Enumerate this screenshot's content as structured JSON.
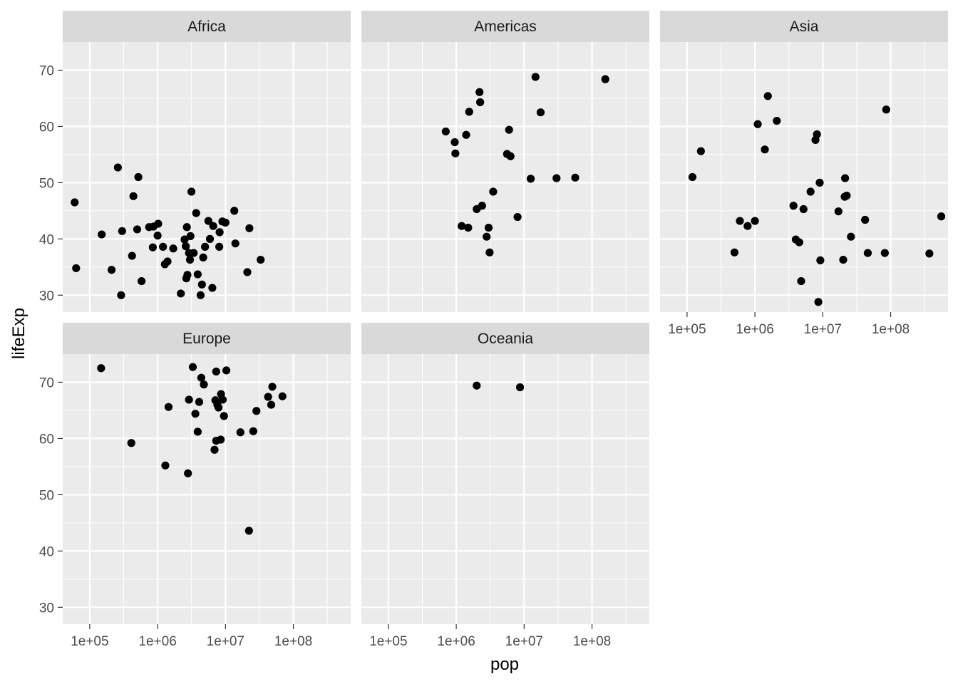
{
  "chart_data": {
    "type": "scatter",
    "xlabel": "pop",
    "ylabel": "lifeExp",
    "x_scale": "log10",
    "xlim": [
      40000,
      700000000
    ],
    "ylim": [
      27,
      75
    ],
    "x_ticks": [
      {
        "value": 100000,
        "label": "1e+05"
      },
      {
        "value": 1000000,
        "label": "1e+06"
      },
      {
        "value": 10000000,
        "label": "1e+07"
      },
      {
        "value": 100000000,
        "label": "1e+08"
      }
    ],
    "y_ticks": [
      {
        "value": 30,
        "label": "30"
      },
      {
        "value": 40,
        "label": "40"
      },
      {
        "value": 50,
        "label": "50"
      },
      {
        "value": 60,
        "label": "60"
      },
      {
        "value": 70,
        "label": "70"
      }
    ],
    "grid": true,
    "colors": {
      "point": "#000000",
      "panel": "#ebebeb",
      "strip": "#d9d9d9",
      "grid": "#ffffff"
    },
    "facets": [
      {
        "name": "Africa",
        "points": [
          {
            "x": 60000,
            "y": 46.5
          },
          {
            "x": 63000,
            "y": 34.8
          },
          {
            "x": 150000,
            "y": 40.8
          },
          {
            "x": 210000,
            "y": 34.5
          },
          {
            "x": 260000,
            "y": 52.7
          },
          {
            "x": 290000,
            "y": 30.0
          },
          {
            "x": 300000,
            "y": 41.4
          },
          {
            "x": 420000,
            "y": 37.0
          },
          {
            "x": 440000,
            "y": 47.6
          },
          {
            "x": 500000,
            "y": 41.7
          },
          {
            "x": 520000,
            "y": 51.0
          },
          {
            "x": 580000,
            "y": 32.5
          },
          {
            "x": 750000,
            "y": 42.1
          },
          {
            "x": 850000,
            "y": 38.5
          },
          {
            "x": 870000,
            "y": 42.2
          },
          {
            "x": 1000000,
            "y": 40.6
          },
          {
            "x": 1020000,
            "y": 42.7
          },
          {
            "x": 1200000,
            "y": 38.6
          },
          {
            "x": 1280000,
            "y": 35.5
          },
          {
            "x": 1400000,
            "y": 36.0
          },
          {
            "x": 1700000,
            "y": 38.3
          },
          {
            "x": 2200000,
            "y": 30.3
          },
          {
            "x": 2500000,
            "y": 39.9
          },
          {
            "x": 2600000,
            "y": 38.7
          },
          {
            "x": 2650000,
            "y": 33.0
          },
          {
            "x": 2700000,
            "y": 42.1
          },
          {
            "x": 2750000,
            "y": 33.6
          },
          {
            "x": 2900000,
            "y": 37.5
          },
          {
            "x": 3000000,
            "y": 36.3
          },
          {
            "x": 3050000,
            "y": 40.5
          },
          {
            "x": 3150000,
            "y": 48.4
          },
          {
            "x": 3400000,
            "y": 37.5
          },
          {
            "x": 3700000,
            "y": 44.6
          },
          {
            "x": 3900000,
            "y": 33.7
          },
          {
            "x": 4300000,
            "y": 30.0
          },
          {
            "x": 4500000,
            "y": 31.9
          },
          {
            "x": 4700000,
            "y": 36.7
          },
          {
            "x": 5000000,
            "y": 38.6
          },
          {
            "x": 5600000,
            "y": 43.2
          },
          {
            "x": 5900000,
            "y": 40.0
          },
          {
            "x": 6400000,
            "y": 31.3
          },
          {
            "x": 6600000,
            "y": 42.3
          },
          {
            "x": 8100000,
            "y": 38.6
          },
          {
            "x": 8200000,
            "y": 41.2
          },
          {
            "x": 9000000,
            "y": 43.1
          },
          {
            "x": 10000000,
            "y": 42.9
          },
          {
            "x": 13500000,
            "y": 45.0
          },
          {
            "x": 14000000,
            "y": 39.2
          },
          {
            "x": 21000000,
            "y": 34.1
          },
          {
            "x": 22500000,
            "y": 41.9
          },
          {
            "x": 33000000,
            "y": 36.3
          }
        ]
      },
      {
        "name": "Americas",
        "points": [
          {
            "x": 700000,
            "y": 59.1
          },
          {
            "x": 950000,
            "y": 57.2
          },
          {
            "x": 970000,
            "y": 55.2
          },
          {
            "x": 1200000,
            "y": 42.3
          },
          {
            "x": 1400000,
            "y": 58.5
          },
          {
            "x": 1500000,
            "y": 42.0
          },
          {
            "x": 1550000,
            "y": 62.6
          },
          {
            "x": 2000000,
            "y": 45.3
          },
          {
            "x": 2200000,
            "y": 66.1
          },
          {
            "x": 2250000,
            "y": 64.3
          },
          {
            "x": 2400000,
            "y": 45.9
          },
          {
            "x": 2800000,
            "y": 40.4
          },
          {
            "x": 3000000,
            "y": 42.0
          },
          {
            "x": 3100000,
            "y": 37.6
          },
          {
            "x": 3500000,
            "y": 48.4
          },
          {
            "x": 5600000,
            "y": 55.1
          },
          {
            "x": 6000000,
            "y": 59.4
          },
          {
            "x": 6300000,
            "y": 54.7
          },
          {
            "x": 8000000,
            "y": 43.9
          },
          {
            "x": 12500000,
            "y": 50.7
          },
          {
            "x": 14700000,
            "y": 68.8
          },
          {
            "x": 17500000,
            "y": 62.5
          },
          {
            "x": 30000000,
            "y": 50.8
          },
          {
            "x": 56600000,
            "y": 50.9
          },
          {
            "x": 157000000,
            "y": 68.4
          }
        ]
      },
      {
        "name": "Asia",
        "points": [
          {
            "x": 120000,
            "y": 51.0
          },
          {
            "x": 160000,
            "y": 55.6
          },
          {
            "x": 500000,
            "y": 37.6
          },
          {
            "x": 600000,
            "y": 43.2
          },
          {
            "x": 780000,
            "y": 42.3
          },
          {
            "x": 1000000,
            "y": 43.2
          },
          {
            "x": 1100000,
            "y": 60.4
          },
          {
            "x": 1400000,
            "y": 55.9
          },
          {
            "x": 1550000,
            "y": 65.4
          },
          {
            "x": 2100000,
            "y": 61.0
          },
          {
            "x": 3700000,
            "y": 45.9
          },
          {
            "x": 4000000,
            "y": 39.9
          },
          {
            "x": 4500000,
            "y": 39.4
          },
          {
            "x": 4800000,
            "y": 32.5
          },
          {
            "x": 5200000,
            "y": 45.3
          },
          {
            "x": 6600000,
            "y": 48.4
          },
          {
            "x": 7800000,
            "y": 57.6
          },
          {
            "x": 8200000,
            "y": 58.6
          },
          {
            "x": 8600000,
            "y": 28.8
          },
          {
            "x": 9000000,
            "y": 50.0
          },
          {
            "x": 9200000,
            "y": 36.2
          },
          {
            "x": 17000000,
            "y": 44.9
          },
          {
            "x": 20000000,
            "y": 36.3
          },
          {
            "x": 21000000,
            "y": 47.5
          },
          {
            "x": 21300000,
            "y": 50.8
          },
          {
            "x": 22500000,
            "y": 47.7
          },
          {
            "x": 26000000,
            "y": 40.4
          },
          {
            "x": 42000000,
            "y": 43.4
          },
          {
            "x": 46000000,
            "y": 37.5
          },
          {
            "x": 82000000,
            "y": 37.5
          },
          {
            "x": 86000000,
            "y": 63.0
          },
          {
            "x": 372000000,
            "y": 37.4
          },
          {
            "x": 556000000,
            "y": 44.0
          }
        ]
      },
      {
        "name": "Europe",
        "points": [
          {
            "x": 147000,
            "y": 72.5
          },
          {
            "x": 410000,
            "y": 59.2
          },
          {
            "x": 1300000,
            "y": 55.2
          },
          {
            "x": 1450000,
            "y": 65.6
          },
          {
            "x": 2800000,
            "y": 53.8
          },
          {
            "x": 2900000,
            "y": 66.9
          },
          {
            "x": 3300000,
            "y": 72.7
          },
          {
            "x": 3600000,
            "y": 64.4
          },
          {
            "x": 3900000,
            "y": 61.2
          },
          {
            "x": 4100000,
            "y": 66.5
          },
          {
            "x": 4400000,
            "y": 70.8
          },
          {
            "x": 4800000,
            "y": 69.6
          },
          {
            "x": 6900000,
            "y": 58.0
          },
          {
            "x": 7100000,
            "y": 66.8
          },
          {
            "x": 7300000,
            "y": 59.6
          },
          {
            "x": 7300000,
            "y": 71.9
          },
          {
            "x": 7600000,
            "y": 66.0
          },
          {
            "x": 7900000,
            "y": 65.5
          },
          {
            "x": 8500000,
            "y": 59.8
          },
          {
            "x": 8600000,
            "y": 67.9
          },
          {
            "x": 9100000,
            "y": 66.9
          },
          {
            "x": 9500000,
            "y": 64.0
          },
          {
            "x": 10300000,
            "y": 72.1
          },
          {
            "x": 16600000,
            "y": 61.1
          },
          {
            "x": 22200000,
            "y": 43.6
          },
          {
            "x": 25700000,
            "y": 61.3
          },
          {
            "x": 28600000,
            "y": 64.9
          },
          {
            "x": 42500000,
            "y": 67.4
          },
          {
            "x": 47200000,
            "y": 66.0
          },
          {
            "x": 49000000,
            "y": 69.2
          },
          {
            "x": 69100000,
            "y": 67.5
          }
        ]
      },
      {
        "name": "Oceania",
        "points": [
          {
            "x": 2000000,
            "y": 69.4
          },
          {
            "x": 8700000,
            "y": 69.1
          }
        ]
      }
    ]
  }
}
